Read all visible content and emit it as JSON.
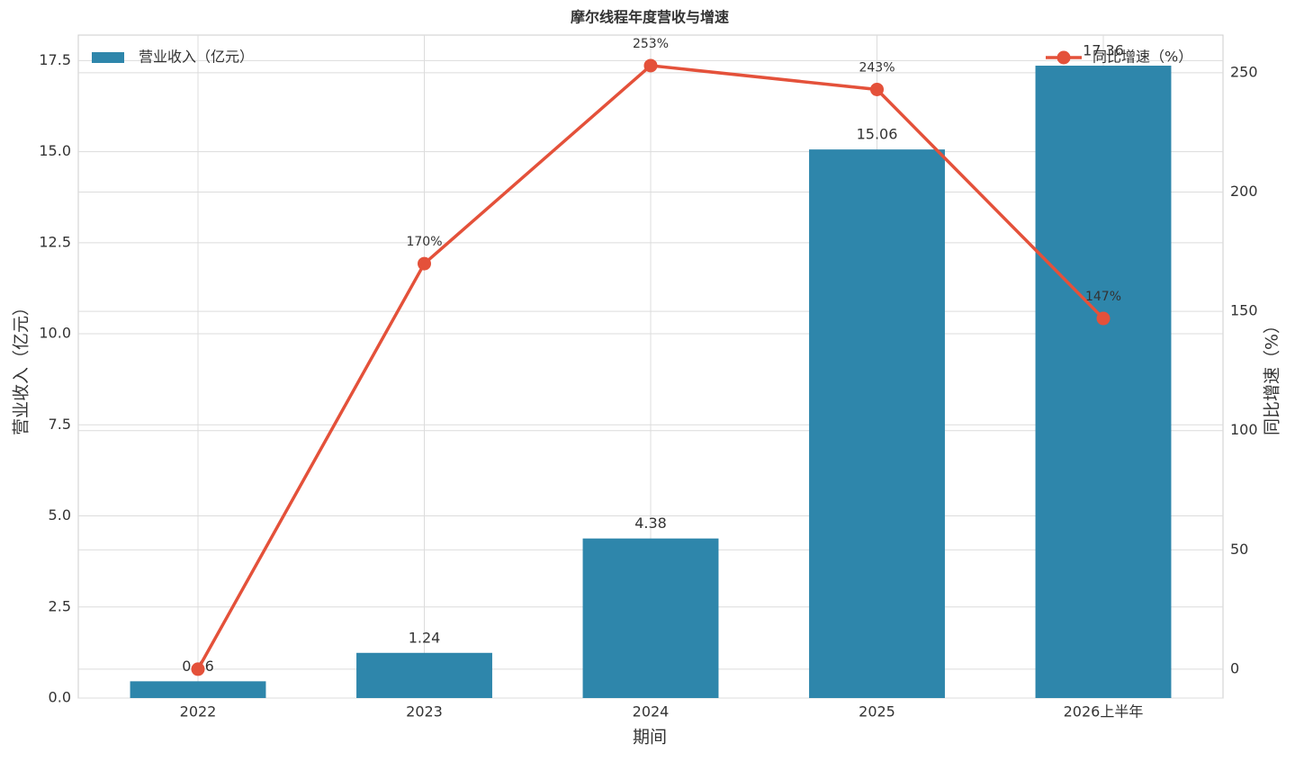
{
  "chart_data": {
    "type": "bar-line",
    "title": "摩尔线程年度营收与增速",
    "x_label": "期间",
    "y_label": "营业收入（亿元）",
    "y2_label": "同比增速（%）",
    "categories": [
      "2022",
      "2023",
      "2024",
      "2025",
      "2026上半年"
    ],
    "series": [
      {
        "name": "营业收入（亿元）",
        "type": "bar",
        "color": "#2e86ab",
        "values": [
          0.46,
          1.24,
          4.38,
          15.06,
          17.36
        ]
      },
      {
        "name": "同比增速（%）",
        "type": "line",
        "axis": "y2",
        "color": "#e4513a",
        "values": [
          0,
          170,
          253,
          243,
          147
        ],
        "value_labels": [
          null,
          "170%",
          "253%",
          "243%",
          "147%"
        ]
      }
    ],
    "ylim": [
      0,
      18.2
    ],
    "yticks": [
      {
        "value": 0,
        "label": "0.0"
      },
      2.5,
      {
        "value": 5,
        "label": "5.0"
      },
      7.5,
      {
        "value": 10,
        "label": "10.0"
      },
      12.5,
      {
        "value": 15,
        "label": "15.0"
      },
      17.5
    ],
    "y2lim": [
      -12.1,
      265.8
    ],
    "y2ticks": [
      0,
      50,
      100,
      150,
      200,
      250
    ],
    "grid": true
  }
}
